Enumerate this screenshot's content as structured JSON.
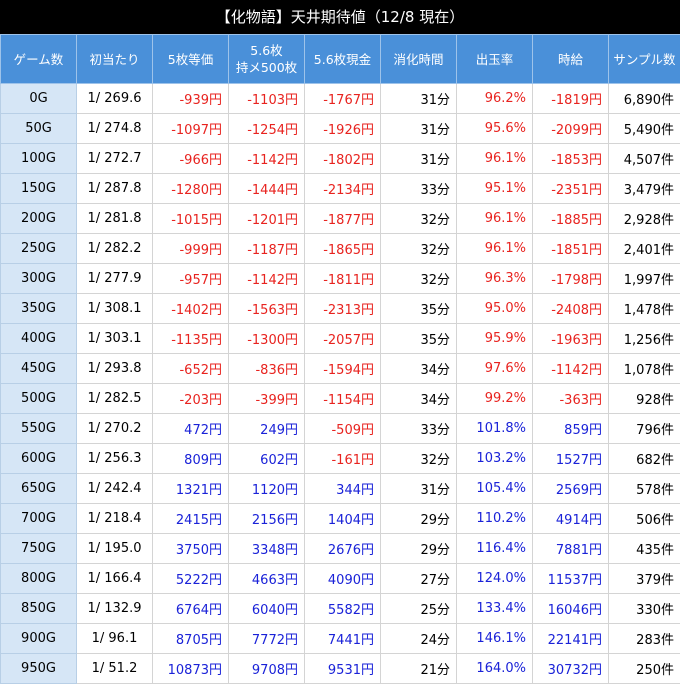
{
  "title": "【化物語】天井期待値（12/8 現在）",
  "colors": {
    "header_bg": "#4a90d9",
    "game_col_bg": "#d6e6f6",
    "negative": "#e8231f",
    "positive": "#1a22d8"
  },
  "headers": [
    "ゲーム数",
    "初当たり",
    "5枚等価",
    "5.6枚\n持メ500枚",
    "5.6枚現金",
    "消化時間",
    "出玉率",
    "時給",
    "サンプル数"
  ],
  "rows": [
    [
      "0G",
      "1/ 269.6",
      "-939円",
      "-1103円",
      "-1767円",
      "31分",
      "96.2%",
      "-1819円",
      "6,890件"
    ],
    [
      "50G",
      "1/ 274.8",
      "-1097円",
      "-1254円",
      "-1926円",
      "31分",
      "95.6%",
      "-2099円",
      "5,490件"
    ],
    [
      "100G",
      "1/ 272.7",
      "-966円",
      "-1142円",
      "-1802円",
      "31分",
      "96.1%",
      "-1853円",
      "4,507件"
    ],
    [
      "150G",
      "1/ 287.8",
      "-1280円",
      "-1444円",
      "-2134円",
      "33分",
      "95.1%",
      "-2351円",
      "3,479件"
    ],
    [
      "200G",
      "1/ 281.8",
      "-1015円",
      "-1201円",
      "-1877円",
      "32分",
      "96.1%",
      "-1885円",
      "2,928件"
    ],
    [
      "250G",
      "1/ 282.2",
      "-999円",
      "-1187円",
      "-1865円",
      "32分",
      "96.1%",
      "-1851円",
      "2,401件"
    ],
    [
      "300G",
      "1/ 277.9",
      "-957円",
      "-1142円",
      "-1811円",
      "32分",
      "96.3%",
      "-1798円",
      "1,997件"
    ],
    [
      "350G",
      "1/ 308.1",
      "-1402円",
      "-1563円",
      "-2313円",
      "35分",
      "95.0%",
      "-2408円",
      "1,478件"
    ],
    [
      "400G",
      "1/ 303.1",
      "-1135円",
      "-1300円",
      "-2057円",
      "35分",
      "95.9%",
      "-1963円",
      "1,256件"
    ],
    [
      "450G",
      "1/ 293.8",
      "-652円",
      "-836円",
      "-1594円",
      "34分",
      "97.6%",
      "-1142円",
      "1,078件"
    ],
    [
      "500G",
      "1/ 282.5",
      "-203円",
      "-399円",
      "-1154円",
      "34分",
      "99.2%",
      "-363円",
      "928件"
    ],
    [
      "550G",
      "1/ 270.2",
      "472円",
      "249円",
      "-509円",
      "33分",
      "101.8%",
      "859円",
      "796件"
    ],
    [
      "600G",
      "1/ 256.3",
      "809円",
      "602円",
      "-161円",
      "32分",
      "103.2%",
      "1527円",
      "682件"
    ],
    [
      "650G",
      "1/ 242.4",
      "1321円",
      "1120円",
      "344円",
      "31分",
      "105.4%",
      "2569円",
      "578件"
    ],
    [
      "700G",
      "1/ 218.4",
      "2415円",
      "2156円",
      "1404円",
      "29分",
      "110.2%",
      "4914円",
      "506件"
    ],
    [
      "750G",
      "1/ 195.0",
      "3750円",
      "3348円",
      "2676円",
      "29分",
      "116.4%",
      "7881円",
      "435件"
    ],
    [
      "800G",
      "1/ 166.4",
      "5222円",
      "4663円",
      "4090円",
      "27分",
      "124.0%",
      "11537円",
      "379件"
    ],
    [
      "850G",
      "1/ 132.9",
      "6764円",
      "6040円",
      "5582円",
      "25分",
      "133.4%",
      "16046円",
      "330件"
    ],
    [
      "900G",
      "1/ 96.1",
      "8705円",
      "7772円",
      "7441円",
      "24分",
      "146.1%",
      "22141円",
      "283件"
    ],
    [
      "950G",
      "1/ 51.2",
      "10873円",
      "9708円",
      "9531円",
      "21分",
      "164.0%",
      "30732円",
      "250件"
    ]
  ]
}
